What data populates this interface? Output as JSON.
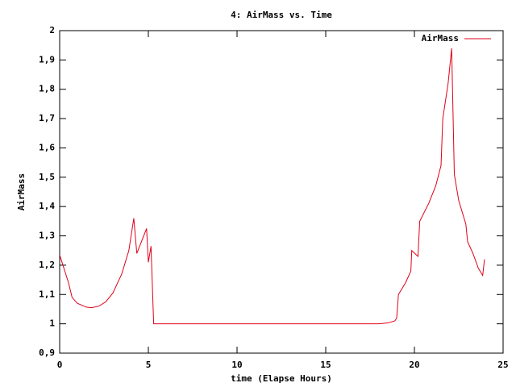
{
  "chart_data": {
    "type": "line",
    "title": "4: AirMass vs. Time",
    "x_label": "time (Elapse Hours)",
    "y_label": "AirMass",
    "xlim": [
      0,
      25
    ],
    "xticks": [
      0,
      5,
      10,
      15,
      20,
      25
    ],
    "ylim": [
      0.9,
      2
    ],
    "yticks": [
      {
        "value": 0.9,
        "label": "0,9"
      },
      1,
      {
        "value": 1.1,
        "label": "1,1"
      },
      {
        "value": 1.2,
        "label": "1,2"
      },
      {
        "value": 1.3,
        "label": "1,3"
      },
      {
        "value": 1.4,
        "label": "1,4"
      },
      {
        "value": 1.5,
        "label": "1,5"
      },
      {
        "value": 1.6,
        "label": "1,6"
      },
      {
        "value": 1.7,
        "label": "1,7"
      },
      {
        "value": 1.8,
        "label": "1,8"
      },
      {
        "value": 1.9,
        "label": "1,9"
      },
      2
    ],
    "legend": "top-right",
    "series": [
      {
        "name": "AirMass",
        "color": "#e0001a",
        "x": [
          0,
          0.5,
          0.7,
          1,
          1.5,
          1.8,
          2.2,
          2.6,
          3,
          3.5,
          3.9,
          4.18,
          4.35,
          4.9,
          5.0,
          5.15,
          5.3,
          18.0,
          18.5,
          18.9,
          19.0,
          19.1,
          19.5,
          19.8,
          19.85,
          20.2,
          20.3,
          20.8,
          21.2,
          21.5,
          21.6,
          21.9,
          22.1,
          22.25,
          22.5,
          22.9,
          23.0,
          23.3,
          23.6,
          23.85,
          23.95
        ],
        "values": [
          1.235,
          1.14,
          1.09,
          1.07,
          1.057,
          1.055,
          1.06,
          1.075,
          1.105,
          1.17,
          1.25,
          1.36,
          1.24,
          1.325,
          1.21,
          1.265,
          1.0,
          1.0,
          1.003,
          1.01,
          1.02,
          1.1,
          1.14,
          1.18,
          1.25,
          1.23,
          1.35,
          1.41,
          1.47,
          1.54,
          1.7,
          1.82,
          1.94,
          1.51,
          1.42,
          1.34,
          1.28,
          1.24,
          1.19,
          1.165,
          1.22
        ]
      }
    ]
  }
}
